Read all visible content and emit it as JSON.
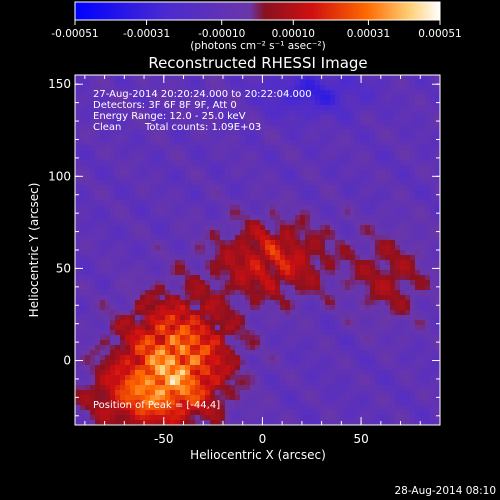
{
  "colorbar": {
    "tick_labels": [
      "-0.00051",
      "-0.00031",
      "-0.00010",
      "0.00010",
      "0.00031",
      "0.00051"
    ],
    "range": [
      -0.00051,
      0.00051
    ],
    "unit_label": "(photons cm⁻² s⁻¹ asec⁻²)",
    "colors": [
      "#0000ff",
      "#4b2ad0",
      "#6a36a8",
      "#8a1020",
      "#d01010",
      "#ff6a00",
      "#ffd27a",
      "#ffffff"
    ]
  },
  "chart_data": {
    "type": "heatmap",
    "title": "Reconstructed RHESSI Image",
    "xlabel": "Heliocentric X (arcsec)",
    "ylabel": "Heliocentric Y (arcsec)",
    "xlim": [
      -95,
      90
    ],
    "ylim": [
      -35,
      155
    ],
    "xticks": [
      -50,
      0,
      50
    ],
    "yticks": [
      0,
      50,
      100,
      150
    ],
    "annotations": {
      "line1": "27-Aug-2014 20:20:24.000 to 20:22:04.000",
      "line2": "Detectors: 3F 6F 8F 9F, Att 0",
      "line3": "Energy Range: 12.0 - 25.0 keV",
      "line4_a": "Clean",
      "line4_b": "Total counts: 1.09E+03",
      "peak": "Position of Peak = [-44,4]"
    },
    "peak": [
      -44,
      4
    ]
  },
  "footer": {
    "timestamp": "28-Aug-2014 08:10"
  }
}
